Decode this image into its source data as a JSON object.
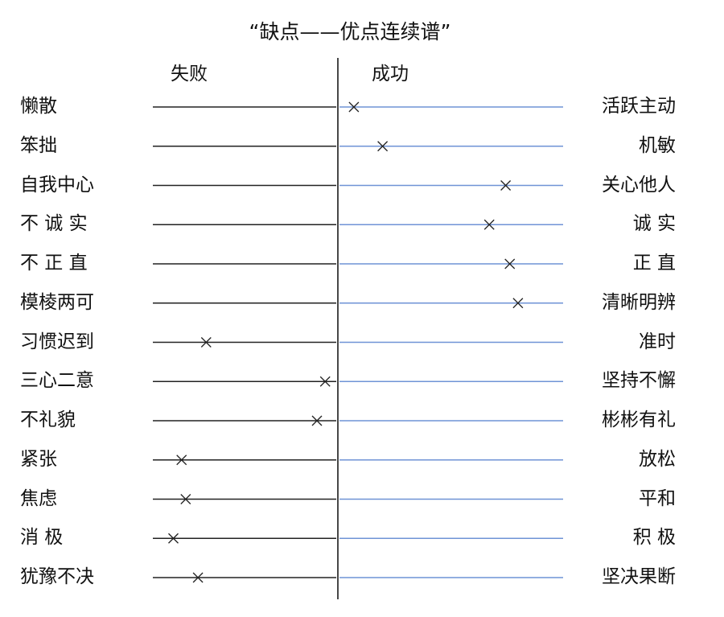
{
  "title": "“缺点——优点连续谱”",
  "left_heading": "失败",
  "right_heading": "成功",
  "colors": {
    "left_line": "#222222",
    "right_line": "#6f93d6",
    "axis": "#333333",
    "mark": "#222222"
  },
  "mark_icon": "x-mark",
  "rows": [
    {
      "left": "懒散",
      "right": "活跃主动",
      "position": 0.49
    },
    {
      "left": "笨拙",
      "right": "机敏",
      "position": 0.56
    },
    {
      "left": "自我中心",
      "right": "关心他人",
      "position": 0.86
    },
    {
      "left": "不 诚 实",
      "right": "诚 实",
      "position": 0.82
    },
    {
      "left": "不 正 直",
      "right": "正 直",
      "position": 0.87
    },
    {
      "left": "模棱两可",
      "right": "清晰明辨",
      "position": 0.89
    },
    {
      "left": "习惯迟到",
      "right": "准时",
      "position": 0.13
    },
    {
      "left": "三心二意",
      "right": "坚持不懈",
      "position": 0.42
    },
    {
      "left": "不礼貌",
      "right": "彬彬有礼",
      "position": 0.4
    },
    {
      "left": "紧张",
      "right": "放松",
      "position": 0.07
    },
    {
      "left": "焦虑",
      "right": "平和",
      "position": 0.08
    },
    {
      "left": "消 极",
      "right": "积 极",
      "position": 0.05
    },
    {
      "left": "犹豫不决",
      "right": "坚决果断",
      "position": 0.11
    }
  ]
}
